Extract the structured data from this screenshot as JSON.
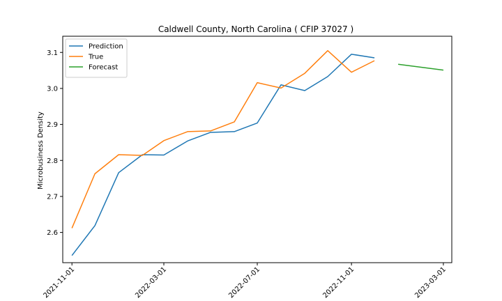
{
  "chart_data": {
    "type": "line",
    "title": "Caldwell County, North Carolina ( CFIP 37027 )",
    "xlabel": "",
    "ylabel": "Microbusiness Density",
    "x": [
      "2021-11-01",
      "2021-12-01",
      "2022-01-01",
      "2022-02-01",
      "2022-03-01",
      "2022-04-01",
      "2022-05-01",
      "2022-06-01",
      "2022-07-01",
      "2022-08-01",
      "2022-09-01",
      "2022-10-01",
      "2022-11-01",
      "2022-12-01"
    ],
    "x_tick_labels": [
      "2021-11-01",
      "2022-03-01",
      "2022-07-01",
      "2022-11-01",
      "2023-03-01"
    ],
    "xlim": [
      "2021-10-20",
      "2023-03-12"
    ],
    "y_tick_labels": [
      "2.6",
      "2.7",
      "2.8",
      "2.9",
      "3.0",
      "3.1"
    ],
    "ylim": [
      2.516,
      3.145
    ],
    "series": [
      {
        "name": "Prediction",
        "color": "#1f77b4",
        "x": [
          "2021-11-01",
          "2021-12-01",
          "2022-01-01",
          "2022-02-01",
          "2022-03-01",
          "2022-04-01",
          "2022-05-01",
          "2022-06-01",
          "2022-07-01",
          "2022-08-01",
          "2022-09-01",
          "2022-10-01",
          "2022-11-01",
          "2022-12-01"
        ],
        "values": [
          2.536,
          2.619,
          2.766,
          2.816,
          2.815,
          2.854,
          2.878,
          2.88,
          2.904,
          3.01,
          2.994,
          3.033,
          3.095,
          3.085
        ]
      },
      {
        "name": "True",
        "color": "#ff7f0e",
        "x": [
          "2021-11-01",
          "2021-12-01",
          "2022-01-01",
          "2022-02-01",
          "2022-03-01",
          "2022-04-01",
          "2022-05-01",
          "2022-06-01",
          "2022-07-01",
          "2022-08-01",
          "2022-09-01",
          "2022-10-01",
          "2022-11-01",
          "2022-12-01"
        ],
        "values": [
          2.612,
          2.763,
          2.816,
          2.814,
          2.855,
          2.88,
          2.882,
          2.907,
          3.016,
          3.001,
          3.042,
          3.105,
          3.045,
          3.077
        ]
      },
      {
        "name": "Forecast",
        "color": "#2ca02c",
        "x": [
          "2023-01-01",
          "2023-03-01"
        ],
        "values": [
          3.067,
          3.051
        ]
      }
    ],
    "legend": "top-left",
    "grid": false
  }
}
